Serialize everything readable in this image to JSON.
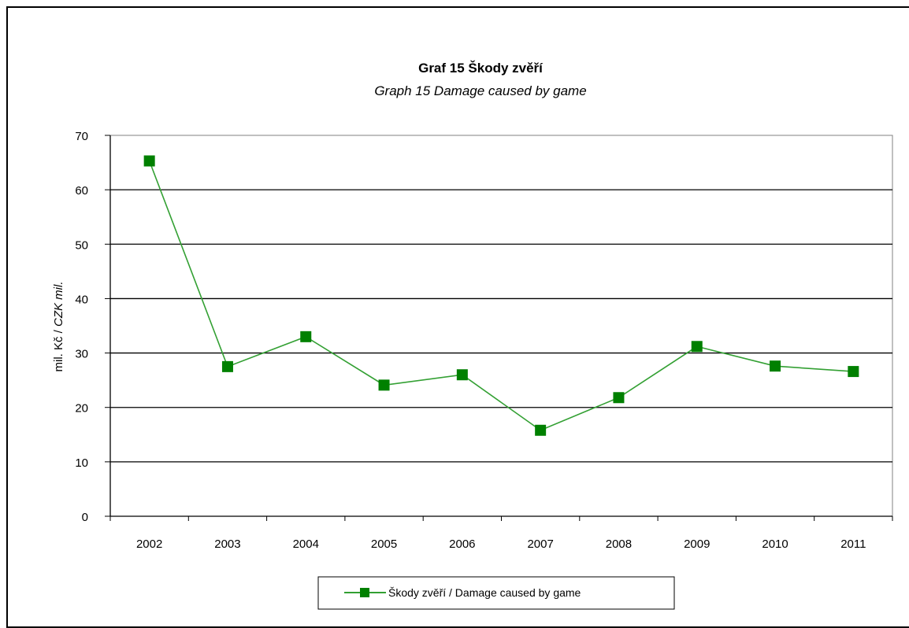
{
  "chart_data": {
    "type": "line",
    "title": "Graf 15  Škody zvěří",
    "subtitle": "Graph 15  Damage caused by game",
    "xlabel": "",
    "ylabel_plain": "mil. Kč / ",
    "ylabel_italic": "CZK mil.",
    "categories": [
      "2002",
      "2003",
      "2004",
      "2005",
      "2006",
      "2007",
      "2008",
      "2009",
      "2010",
      "2011"
    ],
    "ylim": [
      0,
      70
    ],
    "yticks": [
      "0",
      "10",
      "20",
      "30",
      "40",
      "50",
      "60",
      "70"
    ],
    "grid": true,
    "legend_position": "bottom",
    "series": [
      {
        "name": "Škody zvěří / Damage caused by game",
        "values": [
          65.3,
          27.5,
          33.0,
          24.1,
          26.0,
          15.8,
          21.8,
          31.2,
          27.6,
          26.6
        ],
        "color": "#008000",
        "line_color": "#33a033"
      }
    ]
  }
}
